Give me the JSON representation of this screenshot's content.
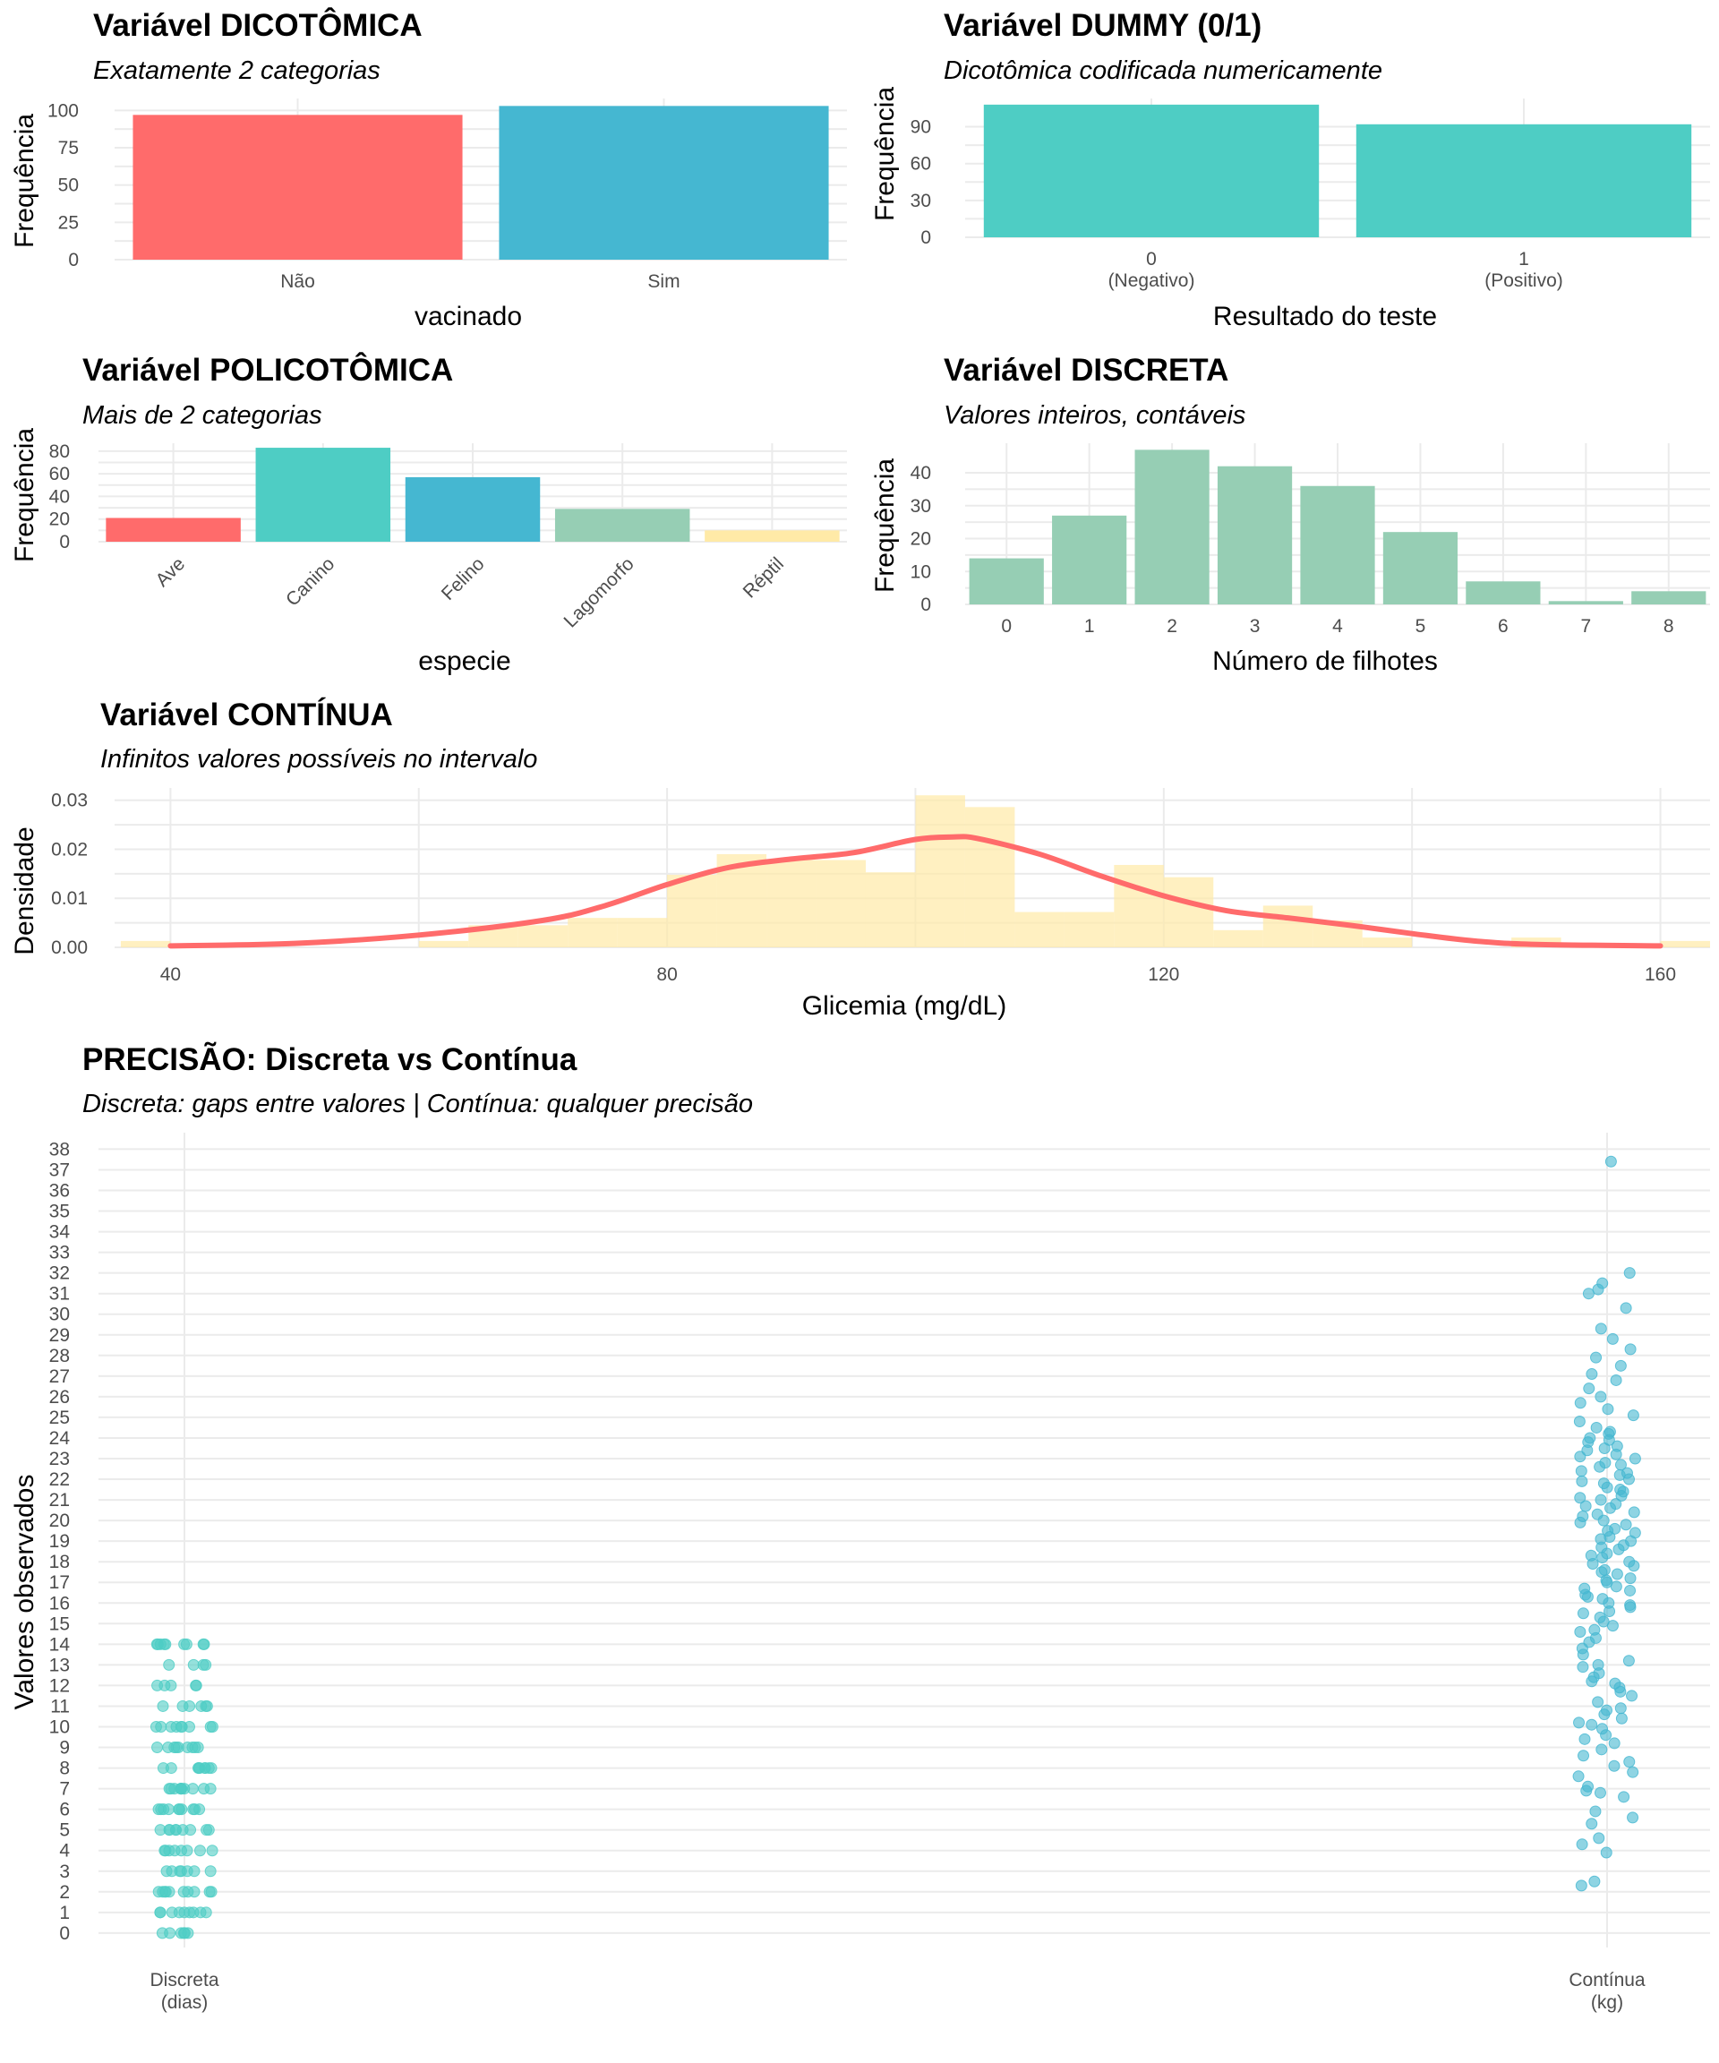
{
  "chart_data": [
    {
      "type": "bar",
      "title": "Variável DICOTÔMICA",
      "subtitle": "Exatamente 2 categorias",
      "xlabel": "vacinado",
      "ylabel": "Frequência",
      "categories": [
        "Não",
        "Sim"
      ],
      "values": [
        97,
        103
      ],
      "colors": [
        "#ff6b6b",
        "#45b7d1"
      ],
      "ylim": [
        0,
        108
      ],
      "yticks": [
        0,
        25,
        50,
        75,
        100
      ],
      "grid": true
    },
    {
      "type": "bar",
      "title": "Variável DUMMY (0/1)",
      "subtitle": "Dicotômica codificada numericamente",
      "xlabel": "Resultado do teste",
      "ylabel": "Frequência",
      "categories": [
        "0",
        "1"
      ],
      "category_sublabels": [
        "(Negativo)",
        "(Positivo)"
      ],
      "values": [
        108,
        92
      ],
      "colors": [
        "#4ecdc4",
        "#4ecdc4"
      ],
      "ylim": [
        0,
        113
      ],
      "yticks": [
        0,
        30,
        60,
        90
      ],
      "grid": true
    },
    {
      "type": "bar",
      "title": "Variável POLICOTÔMICA",
      "subtitle": "Mais de 2 categorias",
      "xlabel": "especie",
      "ylabel": "Frequência",
      "categories": [
        "Ave",
        "Canino",
        "Felino",
        "Lagomorfo",
        "Réptil"
      ],
      "values": [
        21,
        83,
        57,
        29,
        10
      ],
      "colors": [
        "#ff6b6b",
        "#4ecdc4",
        "#45b7d1",
        "#96ceb4",
        "#ffeaa7"
      ],
      "ylim": [
        0,
        87
      ],
      "yticks": [
        0,
        20,
        40,
        60,
        80
      ],
      "grid": true
    },
    {
      "type": "bar",
      "title": "Variável DISCRETA",
      "subtitle": "Valores inteiros, contáveis",
      "xlabel": "Número de filhotes",
      "ylabel": "Frequência",
      "categories": [
        "0",
        "1",
        "2",
        "3",
        "4",
        "5",
        "6",
        "7",
        "8"
      ],
      "values": [
        14,
        27,
        47,
        42,
        36,
        22,
        7,
        1,
        4
      ],
      "colors": [
        "#96ceb4"
      ],
      "ylim": [
        0,
        49
      ],
      "yticks": [
        0,
        10,
        20,
        30,
        40
      ],
      "grid": true
    },
    {
      "type": "area",
      "title": "Variável CONTÍNUA",
      "subtitle": "Infinitos valores possíveis no intervalo",
      "xlabel": "Glicemia (mg/dL)",
      "ylabel": "Densidade",
      "xlim": [
        35.5,
        164
      ],
      "ylim": [
        0,
        0.0325
      ],
      "xticks": [
        40,
        80,
        120,
        160
      ],
      "yticks": [
        0,
        0.01,
        0.02,
        0.03
      ],
      "ytick_labels": [
        "0.00",
        "0.01",
        "0.02",
        "0.03"
      ],
      "histogram": {
        "bin_edges": [
          36,
          40,
          44,
          48,
          52,
          56,
          60,
          64,
          68,
          72,
          76,
          80,
          84,
          88,
          92,
          96,
          100,
          104,
          108,
          112,
          116,
          120,
          124,
          128,
          132,
          136,
          140,
          144,
          148,
          152,
          156,
          160,
          164
        ],
        "density": [
          0.0013,
          0,
          0,
          0,
          0,
          0,
          0.0013,
          0.0045,
          0.0045,
          0.006,
          0.006,
          0.0148,
          0.019,
          0.0178,
          0.0178,
          0.0153,
          0.031,
          0.0286,
          0.0072,
          0.0072,
          0.0168,
          0.0143,
          0.0035,
          0.0085,
          0.0055,
          0.002,
          0,
          0,
          0.002,
          0,
          0,
          0.0013
        ],
        "color": "#ffeaa7"
      },
      "density_curve": {
        "x": [
          40,
          50,
          60,
          70,
          75,
          80,
          85,
          90,
          95,
          100,
          103,
          105,
          110,
          115,
          120,
          125,
          130,
          135,
          140,
          145,
          150,
          160
        ],
        "y": [
          0.0003,
          0.0008,
          0.0025,
          0.0055,
          0.0085,
          0.0128,
          0.0163,
          0.018,
          0.0193,
          0.022,
          0.0225,
          0.0222,
          0.019,
          0.0145,
          0.0105,
          0.0075,
          0.006,
          0.0045,
          0.0028,
          0.0013,
          0.0006,
          0.0003
        ],
        "color": "#ff6b6b"
      },
      "grid": true
    },
    {
      "type": "scatter",
      "title": "PRECISÃO: Discreta vs Contínua",
      "subtitle": "Discreta: gaps entre valores | Contínua: qualquer precisão",
      "xlabel": "",
      "ylabel": "Valores observados",
      "categories": [
        "Discreta",
        "Contínua"
      ],
      "category_sublabels": [
        "(dias)",
        "(kg)"
      ],
      "ylim": [
        -0.7,
        38.8
      ],
      "yticks": [
        0,
        1,
        2,
        3,
        4,
        5,
        6,
        7,
        8,
        9,
        10,
        11,
        12,
        13,
        14,
        15,
        16,
        17,
        18,
        19,
        20,
        21,
        22,
        23,
        24,
        25,
        26,
        27,
        28,
        29,
        30,
        31,
        32,
        33,
        34,
        35,
        36,
        37,
        38
      ],
      "series": [
        {
          "name": "Discreta",
          "color": "#4ecdc4",
          "values": [
            0,
            0,
            0,
            0,
            0,
            0,
            1,
            1,
            1,
            1,
            1,
            1,
            1,
            1,
            1,
            2,
            2,
            2,
            2,
            2,
            2,
            2,
            2,
            2,
            2,
            3,
            3,
            3,
            3,
            3,
            3,
            3,
            4,
            4,
            4,
            4,
            4,
            4,
            4,
            4,
            5,
            5,
            5,
            5,
            5,
            5,
            5,
            5,
            5,
            6,
            6,
            6,
            6,
            6,
            6,
            6,
            6,
            6,
            6,
            7,
            7,
            7,
            7,
            7,
            7,
            7,
            7,
            7,
            7,
            7,
            8,
            8,
            8,
            8,
            8,
            8,
            8,
            8,
            8,
            9,
            9,
            9,
            9,
            9,
            9,
            9,
            9,
            9,
            10,
            10,
            10,
            10,
            10,
            10,
            10,
            10,
            10,
            11,
            11,
            11,
            11,
            11,
            11,
            12,
            12,
            12,
            12,
            12,
            13,
            13,
            13,
            13,
            14,
            14,
            14,
            14,
            14,
            14,
            14,
            14,
            14
          ]
        },
        {
          "name": "Contínua",
          "color": "#45b7d1",
          "values": [
            2.3,
            2.5,
            3.9,
            4.3,
            4.6,
            5.3,
            5.9,
            6.6,
            6.9,
            7.1,
            7.6,
            8.1,
            8.6,
            8.9,
            9.4,
            9.6,
            9.9,
            10.2,
            10.4,
            10.6,
            10.9,
            11.2,
            11.5,
            11.9,
            12.1,
            12.4,
            12.6,
            12.9,
            13.2,
            13.5,
            13.8,
            14.1,
            14.3,
            14.6,
            14.9,
            15.1,
            15.3,
            15.6,
            15.8,
            16.0,
            16.2,
            16.4,
            16.6,
            16.8,
            17.0,
            17.2,
            17.4,
            17.6,
            17.8,
            18.0,
            18.2,
            18.4,
            18.6,
            18.8,
            19.0,
            19.2,
            19.4,
            19.6,
            19.8,
            20.0,
            20.2,
            20.4,
            20.6,
            20.8,
            21.0,
            21.2,
            21.4,
            21.6,
            21.8,
            22.0,
            22.2,
            22.4,
            22.6,
            22.8,
            23.0,
            23.2,
            23.4,
            23.6,
            23.8,
            24.0,
            24.2,
            24.5,
            24.8,
            25.1,
            25.4,
            25.7,
            26.0,
            26.4,
            26.8,
            27.1,
            27.5,
            27.9,
            28.3,
            28.8,
            29.3,
            30.3,
            31.0,
            31.2,
            31.5,
            32.0,
            37.4,
            15.5,
            16.3,
            17.1,
            17.9,
            18.7,
            19.5,
            20.3,
            21.1,
            21.9,
            22.7,
            23.5,
            24.3,
            15.9,
            16.7,
            17.5,
            18.3,
            19.1,
            19.9,
            20.7,
            21.5,
            22.3,
            23.1,
            23.9,
            14.7,
            13.0,
            12.2,
            11.7,
            10.8,
            10.1,
            9.2,
            8.3,
            7.8,
            6.8,
            5.6
          ]
        }
      ],
      "grid": true
    }
  ]
}
